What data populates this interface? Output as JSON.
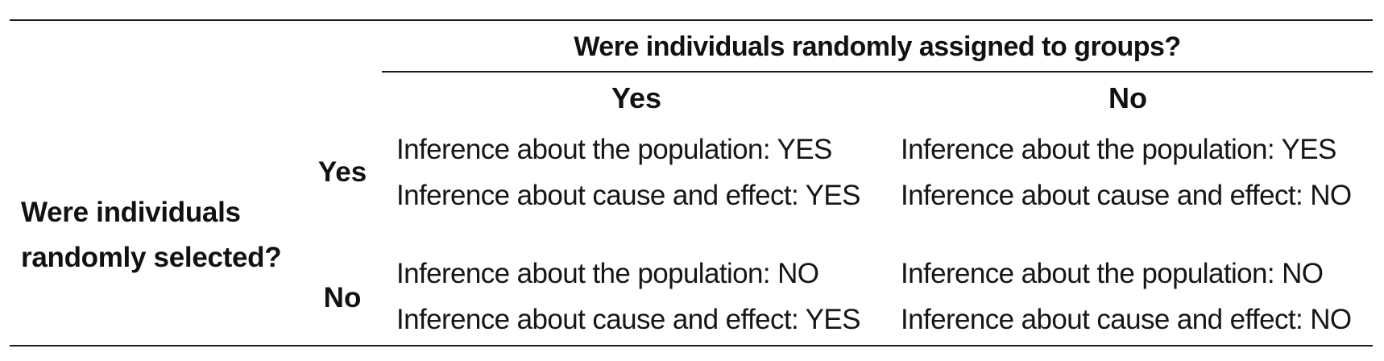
{
  "table": {
    "column_header_title": "Were individuals randomly assigned to groups?",
    "column_labels": [
      "Yes",
      "No"
    ],
    "row_header_lines": [
      "Were individuals",
      "randomly selected?"
    ],
    "row_labels": [
      "Yes",
      "No"
    ],
    "cells": [
      [
        {
          "population": "Inference about the population: YES",
          "cause_effect": "Inference about cause and effect: YES"
        },
        {
          "population": "Inference about the population: YES",
          "cause_effect": "Inference about cause and effect: NO"
        }
      ],
      [
        {
          "population": "Inference about the population: NO",
          "cause_effect": "Inference about cause and effect: YES"
        },
        {
          "population": "Inference about the population: NO",
          "cause_effect": "Inference about cause and effect: NO"
        }
      ]
    ]
  }
}
